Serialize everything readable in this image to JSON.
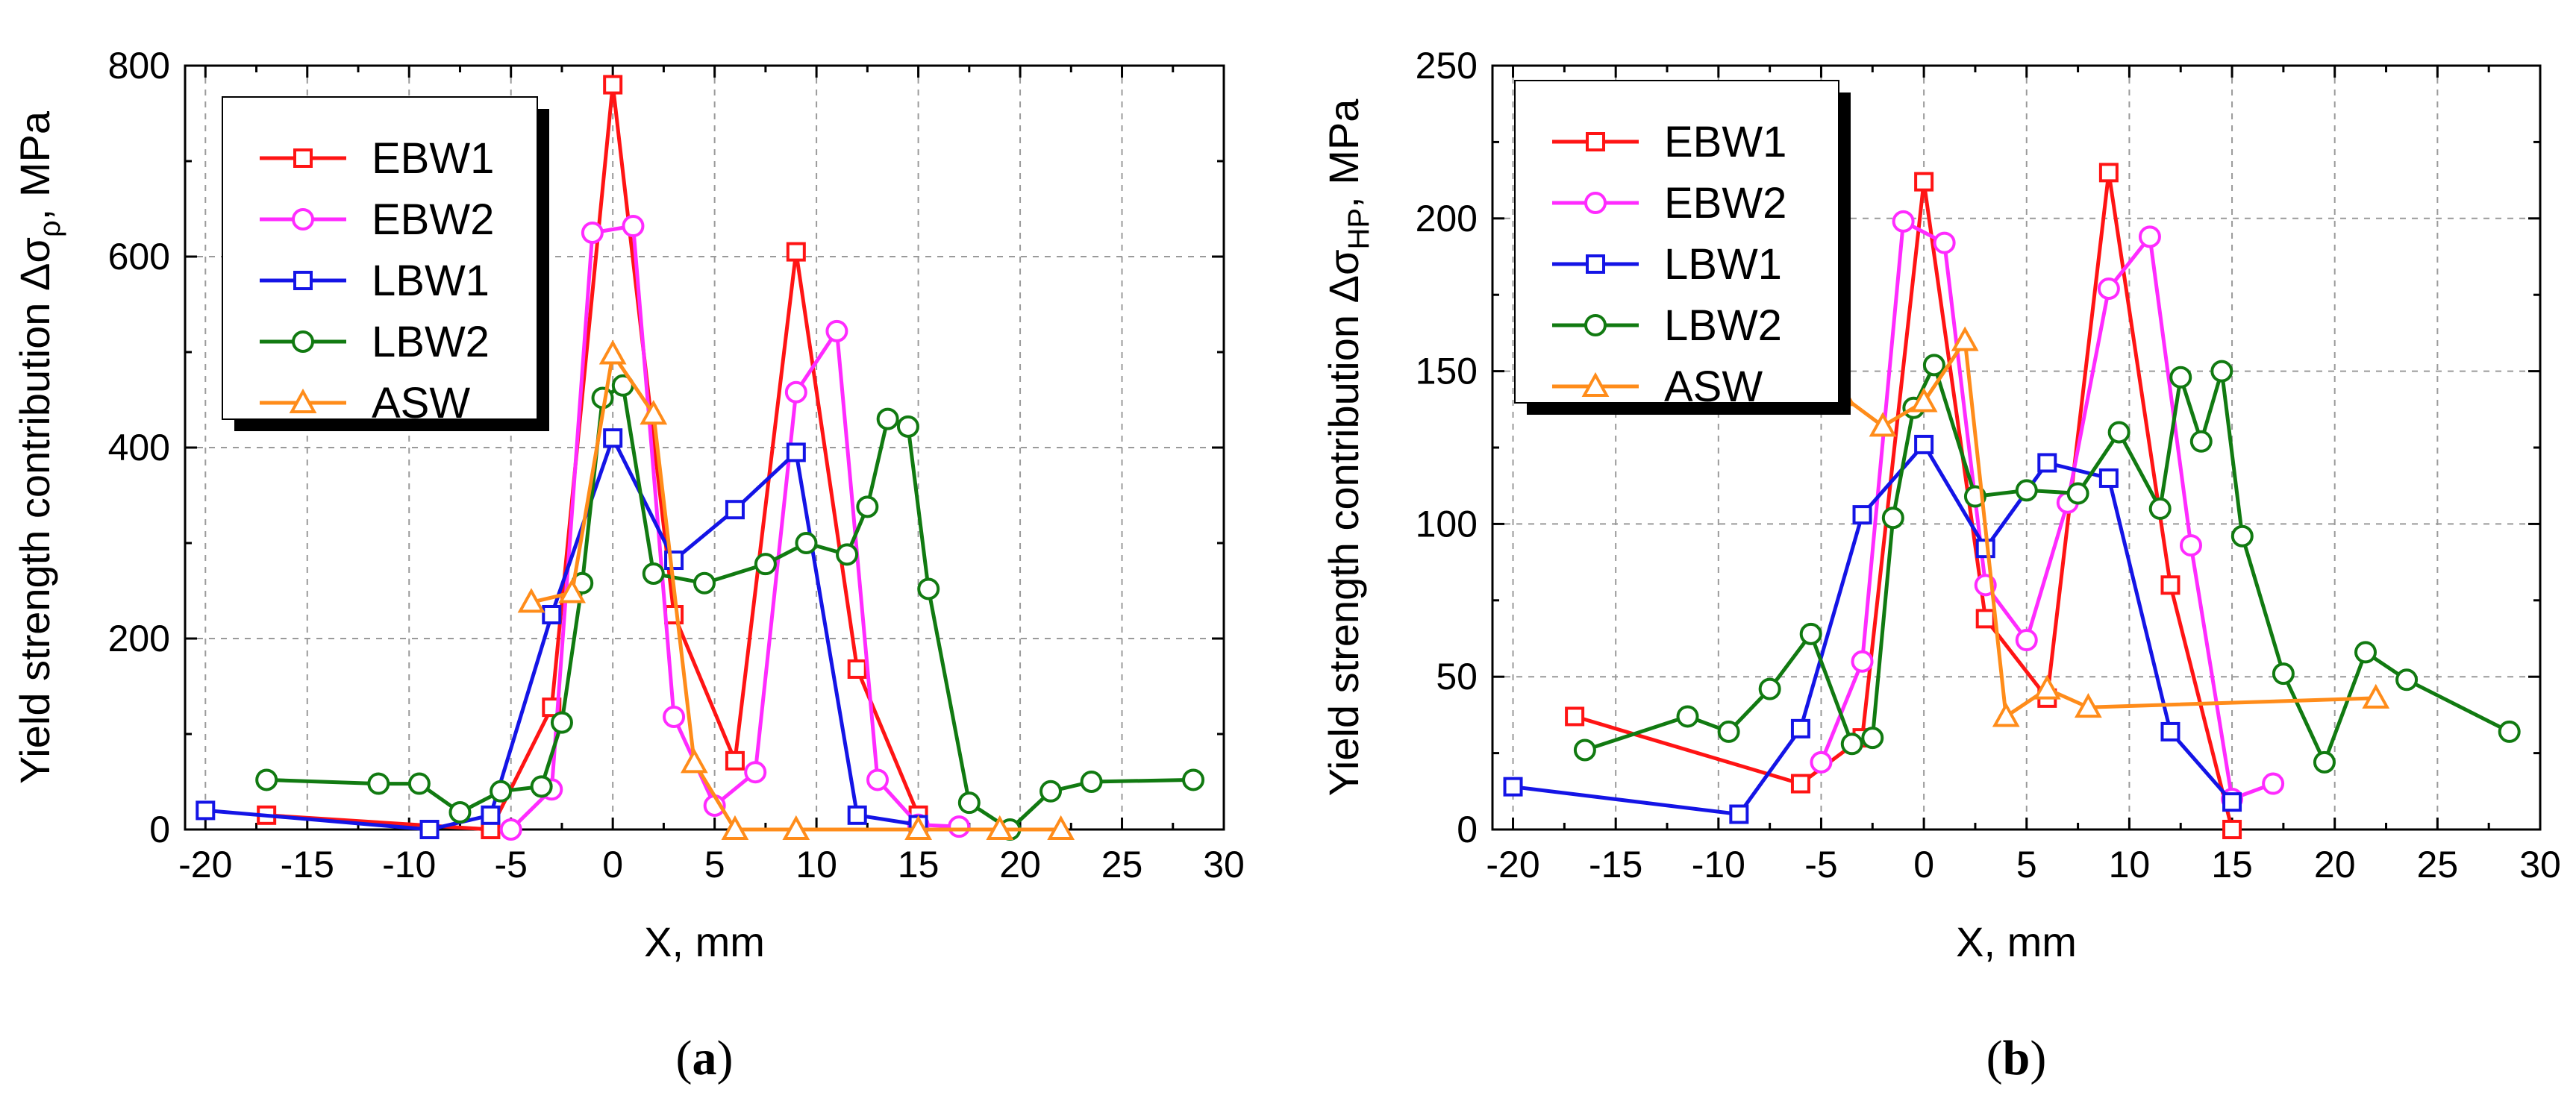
{
  "chart_data": [
    {
      "type": "line",
      "panel_label": "(a)",
      "xlabel": "X, mm",
      "ylabel_main": "Yield strength contribution Δσ",
      "ylabel_sub": "ρ",
      "ylabel_unit": ", MPa",
      "xlim": [
        -21,
        30
      ],
      "ylim": [
        0,
        800
      ],
      "xticks": [
        -20,
        -15,
        -10,
        -5,
        0,
        5,
        10,
        15,
        20,
        25,
        30
      ],
      "yticks": [
        0,
        200,
        400,
        600,
        800
      ],
      "grid": true,
      "legend_position": "top-left",
      "series": [
        {
          "name": "EBW1",
          "color": "#ff1414",
          "marker": "square",
          "points": [
            [
              -17,
              15
            ],
            [
              -6,
              0
            ],
            [
              -3,
              128
            ],
            [
              0,
              780
            ],
            [
              3,
              225
            ],
            [
              6,
              72
            ],
            [
              9,
              605
            ],
            [
              12,
              168
            ],
            [
              15,
              15
            ]
          ]
        },
        {
          "name": "EBW2",
          "color": "#ff2bff",
          "marker": "circle",
          "points": [
            [
              -5,
              0
            ],
            [
              -3,
              42
            ],
            [
              -1,
              625
            ],
            [
              1,
              632
            ],
            [
              3,
              118
            ],
            [
              5,
              25
            ],
            [
              7,
              60
            ],
            [
              9,
              458
            ],
            [
              11,
              522
            ],
            [
              13,
              52
            ],
            [
              15,
              5
            ],
            [
              17,
              3
            ]
          ]
        },
        {
          "name": "LBW1",
          "color": "#1414e6",
          "marker": "square",
          "points": [
            [
              -20,
              20
            ],
            [
              -9,
              0
            ],
            [
              -6,
              15
            ],
            [
              -3,
              225
            ],
            [
              0,
              410
            ],
            [
              3,
              282
            ],
            [
              6,
              335
            ],
            [
              9,
              395
            ],
            [
              12,
              15
            ],
            [
              15,
              5
            ]
          ]
        },
        {
          "name": "LBW2",
          "color": "#117a11",
          "marker": "circle",
          "points": [
            [
              -17,
              52
            ],
            [
              -11.5,
              48
            ],
            [
              -9.5,
              48
            ],
            [
              -7.5,
              18
            ],
            [
              -5.5,
              40
            ],
            [
              -3.5,
              45
            ],
            [
              -2.5,
              112
            ],
            [
              -1.5,
              258
            ],
            [
              -0.5,
              452
            ],
            [
              0.5,
              465
            ],
            [
              2,
              268
            ],
            [
              4.5,
              258
            ],
            [
              7.5,
              278
            ],
            [
              9.5,
              300
            ],
            [
              11.5,
              288
            ],
            [
              12.5,
              338
            ],
            [
              13.5,
              430
            ],
            [
              14.5,
              422
            ],
            [
              15.5,
              252
            ],
            [
              17.5,
              28
            ],
            [
              19.5,
              0
            ],
            [
              21.5,
              40
            ],
            [
              23.5,
              50
            ],
            [
              28.5,
              52
            ]
          ]
        },
        {
          "name": "ASW",
          "color": "#ff8c1a",
          "marker": "triangle",
          "points": [
            [
              -4,
              238
            ],
            [
              -2,
              248
            ],
            [
              0,
              498
            ],
            [
              2,
              435
            ],
            [
              4,
              70
            ],
            [
              6,
              0
            ],
            [
              9,
              0
            ],
            [
              15,
              0
            ],
            [
              19,
              0
            ],
            [
              22,
              0
            ]
          ]
        }
      ]
    },
    {
      "type": "line",
      "panel_label": "(b)",
      "xlabel": "X, mm",
      "ylabel_main": "Yield strength contribution Δσ",
      "ylabel_sub": "HP",
      "ylabel_unit": ", MPa",
      "xlim": [
        -21,
        30
      ],
      "ylim": [
        0,
        250
      ],
      "xticks": [
        -20,
        -15,
        -10,
        -5,
        0,
        5,
        10,
        15,
        20,
        25,
        30
      ],
      "yticks": [
        0,
        50,
        100,
        150,
        200,
        250
      ],
      "grid": true,
      "legend_position": "top-left",
      "series": [
        {
          "name": "EBW1",
          "color": "#ff1414",
          "marker": "square",
          "points": [
            [
              -17,
              37
            ],
            [
              -6,
              15
            ],
            [
              -3,
              30
            ],
            [
              0,
              212
            ],
            [
              3,
              69
            ],
            [
              6,
              43
            ],
            [
              9,
              215
            ],
            [
              12,
              80
            ],
            [
              15,
              0
            ]
          ]
        },
        {
          "name": "EBW2",
          "color": "#ff2bff",
          "marker": "circle",
          "points": [
            [
              -5,
              22
            ],
            [
              -3,
              55
            ],
            [
              -1,
              199
            ],
            [
              1,
              192
            ],
            [
              3,
              80
            ],
            [
              5,
              62
            ],
            [
              7,
              107
            ],
            [
              9,
              177
            ],
            [
              11,
              194
            ],
            [
              13,
              93
            ],
            [
              15,
              10
            ],
            [
              17,
              15
            ]
          ]
        },
        {
          "name": "LBW1",
          "color": "#1414e6",
          "marker": "square",
          "points": [
            [
              -20,
              14
            ],
            [
              -9,
              5
            ],
            [
              -6,
              33
            ],
            [
              -3,
              103
            ],
            [
              0,
              126
            ],
            [
              3,
              92
            ],
            [
              6,
              120
            ],
            [
              9,
              115
            ],
            [
              12,
              32
            ],
            [
              15,
              9
            ]
          ]
        },
        {
          "name": "LBW2",
          "color": "#117a11",
          "marker": "circle",
          "points": [
            [
              -16.5,
              26
            ],
            [
              -11.5,
              37
            ],
            [
              -9.5,
              32
            ],
            [
              -7.5,
              46
            ],
            [
              -5.5,
              64
            ],
            [
              -3.5,
              28
            ],
            [
              -2.5,
              30
            ],
            [
              -1.5,
              102
            ],
            [
              -0.5,
              138
            ],
            [
              0.5,
              152
            ],
            [
              2.5,
              109
            ],
            [
              5,
              111
            ],
            [
              7.5,
              110
            ],
            [
              9.5,
              130
            ],
            [
              11.5,
              105
            ],
            [
              12.5,
              148
            ],
            [
              13.5,
              127
            ],
            [
              14.5,
              150
            ],
            [
              15.5,
              96
            ],
            [
              17.5,
              51
            ],
            [
              19.5,
              22
            ],
            [
              21.5,
              58
            ],
            [
              23.5,
              49
            ],
            [
              28.5,
              32
            ]
          ]
        },
        {
          "name": "ASW",
          "color": "#ff8c1a",
          "marker": "triangle",
          "points": [
            [
              -4,
              142
            ],
            [
              -2,
              132
            ],
            [
              0,
              140
            ],
            [
              2,
              160
            ],
            [
              4,
              37
            ],
            [
              6,
              46
            ],
            [
              8,
              40
            ],
            [
              22,
              43
            ]
          ]
        }
      ]
    }
  ]
}
